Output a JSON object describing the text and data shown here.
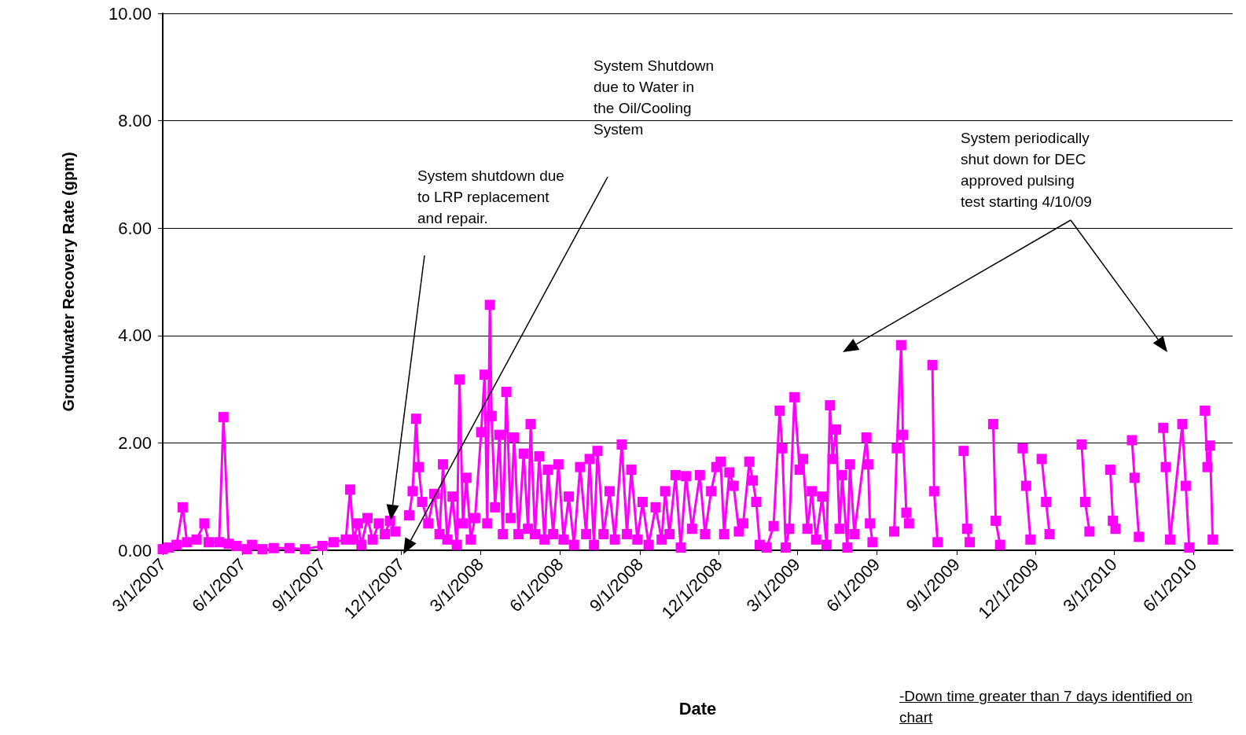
{
  "chart_data": {
    "type": "line",
    "xlabel": "Date",
    "ylabel": "Groundwater Recovery Rate (gpm)",
    "annotations": [
      "System shutdown due\nto LRP replacement\nand repair.",
      "System Shutdown\ndue to Water in\nthe Oil/Cooling\nSystem",
      "System periodically\nshut down for DEC\napproved pulsing\ntest starting 4/10/09",
      "-Down time greater than 7 days identified on\nchart"
    ],
    "xlim": [
      "2007-03-01",
      "2010-07-16"
    ],
    "xticks": [
      {
        "value": "2007-03-01",
        "label": "3/1/2007"
      },
      {
        "value": "2007-06-01",
        "label": "6/1/2007"
      },
      {
        "value": "2007-09-01",
        "label": "9/1/2007"
      },
      {
        "value": "2007-12-01",
        "label": "12/1/2007"
      },
      {
        "value": "2008-03-01",
        "label": "3/1/2008"
      },
      {
        "value": "2008-06-01",
        "label": "6/1/2008"
      },
      {
        "value": "2008-09-01",
        "label": "9/1/2008"
      },
      {
        "value": "2008-12-01",
        "label": "12/1/2008"
      },
      {
        "value": "2009-03-01",
        "label": "3/1/2009"
      },
      {
        "value": "2009-06-01",
        "label": "6/1/2009"
      },
      {
        "value": "2009-09-01",
        "label": "9/1/2009"
      },
      {
        "value": "2009-12-01",
        "label": "12/1/2009"
      },
      {
        "value": "2010-03-01",
        "label": "3/1/2010"
      },
      {
        "value": "2010-06-01",
        "label": "6/1/2010"
      }
    ],
    "ylim": [
      0,
      10
    ],
    "yticks": [
      {
        "value": 0,
        "label": "0.00"
      },
      {
        "value": 2,
        "label": "2.00"
      },
      {
        "value": 4,
        "label": "4.00"
      },
      {
        "value": 6,
        "label": "6.00"
      },
      {
        "value": 8,
        "label": "8.00"
      },
      {
        "value": 10,
        "label": "10.00"
      }
    ],
    "grid": "y",
    "marker": "square",
    "line_style": "solid",
    "series": [
      {
        "color": "#ff00ff",
        "x": [
          "2007-03-01",
          "2007-03-08",
          "2007-03-17",
          "2007-03-24",
          "2007-03-29",
          "2007-04-09",
          "2007-04-18",
          "2007-04-23",
          "2007-05-05",
          "2007-05-10",
          "2007-05-16",
          "2007-05-25",
          "2007-06-06",
          "2007-06-12",
          "2007-06-24",
          "2007-07-07",
          "2007-07-25",
          "2007-08-12",
          "2007-09-01",
          "2007-09-14",
          "2007-09-28",
          "2007-10-03",
          "2007-10-07",
          "2007-10-12",
          "2007-10-16",
          "2007-10-23",
          "2007-10-29",
          "2007-11-05",
          "2007-11-12",
          "2007-11-18",
          "2007-11-24",
          "2007-12-01",
          "2007-12-10",
          "2007-12-14",
          "2007-12-18",
          "2007-12-21",
          "2007-12-25",
          "2008-01-01",
          "2008-01-08",
          "2008-01-14",
          "2008-01-18",
          "2008-01-23",
          "2008-01-29",
          "2008-02-03",
          "2008-02-06",
          "2008-02-10",
          "2008-02-14",
          "2008-02-19",
          "2008-02-24",
          "2008-03-02",
          "2008-03-06",
          "2008-03-09",
          "2008-03-12",
          "2008-03-14",
          "2008-03-18",
          "2008-03-23",
          "2008-03-27",
          "2008-03-31",
          "2008-04-05",
          "2008-04-09",
          "2008-04-14",
          "2008-04-20",
          "2008-04-25",
          "2008-04-28",
          "2008-05-03",
          "2008-05-08",
          "2008-05-14",
          "2008-05-18",
          "2008-05-24",
          "2008-05-30",
          "2008-06-05",
          "2008-06-11",
          "2008-06-17",
          "2008-06-24",
          "2008-07-01",
          "2008-07-05",
          "2008-07-10",
          "2008-07-14",
          "2008-07-21",
          "2008-07-28",
          "2008-08-03",
          "2008-08-11",
          "2008-08-17",
          "2008-08-22",
          "2008-08-29",
          "2008-09-04",
          "2008-09-11",
          "2008-09-19",
          "2008-09-26",
          "2008-09-30",
          "2008-10-05",
          "2008-10-12",
          "2008-10-18",
          "2008-10-24",
          "2008-10-31",
          "2008-11-09",
          "2008-11-15",
          "2008-11-22",
          "2008-11-28",
          "2008-12-03",
          "2008-12-07",
          "2008-12-13",
          "2008-12-18",
          "2008-12-24",
          "2008-12-29",
          "2009-01-05",
          "2009-01-09",
          "2009-01-13",
          "2009-01-17",
          "2009-01-25",
          "2009-02-02",
          "2009-02-09",
          "2009-02-12",
          "2009-02-16",
          "2009-02-20",
          "2009-02-26",
          "2009-03-04",
          "2009-03-08",
          "2009-03-13",
          "2009-03-18",
          "2009-03-23",
          "2009-03-30",
          "2009-04-04",
          "2009-04-08",
          "2009-04-11",
          "2009-04-15",
          "2009-04-19",
          "2009-04-22",
          "2009-04-28",
          "2009-05-01",
          "2009-05-06",
          "2009-05-20",
          "2009-05-22",
          "2009-05-24",
          "2009-05-27",
          "2009-06-10",
          "2009-06-21",
          "2009-06-24",
          "2009-06-29",
          "2009-07-01",
          "2009-07-05",
          "2009-07-08",
          "2009-07-20",
          "2009-08-04",
          "2009-08-06",
          "2009-08-10",
          "2009-08-25",
          "2009-09-09",
          "2009-09-13",
          "2009-09-16",
          "2009-09-30",
          "2009-10-13",
          "2009-10-16",
          "2009-10-21",
          "2009-11-02",
          "2009-11-16",
          "2009-11-20",
          "2009-11-25",
          "2009-12-01",
          "2009-12-08",
          "2009-12-13",
          "2009-12-17",
          "2010-01-05",
          "2010-01-23",
          "2010-01-27",
          "2010-02-01",
          "2010-02-12",
          "2010-02-25",
          "2010-02-28",
          "2010-03-03",
          "2010-03-12",
          "2010-03-22",
          "2010-03-25",
          "2010-03-30",
          "2010-04-12",
          "2010-04-27",
          "2010-04-30",
          "2010-05-05",
          "2010-05-19",
          "2010-05-23",
          "2010-05-27",
          "2010-06-05",
          "2010-06-14",
          "2010-06-17",
          "2010-06-20",
          "2010-06-23"
        ],
        "values": [
          0.02,
          0.05,
          0.1,
          0.8,
          0.15,
          0.2,
          0.5,
          0.15,
          0.15,
          2.48,
          0.12,
          0.08,
          0.02,
          0.1,
          0.02,
          0.04,
          0.04,
          0.02,
          0.08,
          0.15,
          0.2,
          1.13,
          0.2,
          0.5,
          0.1,
          0.6,
          0.2,
          0.5,
          0.3,
          0.55,
          0.35,
          null,
          0.65,
          1.1,
          2.45,
          1.55,
          0.9,
          0.5,
          1.05,
          0.3,
          1.6,
          0.2,
          1.0,
          0.1,
          3.18,
          0.5,
          1.35,
          0.2,
          0.6,
          2.2,
          3.27,
          0.5,
          4.57,
          2.5,
          0.8,
          2.15,
          0.3,
          2.95,
          0.6,
          2.1,
          0.3,
          1.8,
          0.4,
          2.35,
          0.3,
          1.75,
          0.2,
          1.5,
          0.3,
          1.6,
          0.2,
          1.0,
          0.1,
          1.55,
          0.3,
          1.7,
          0.1,
          1.85,
          0.3,
          1.1,
          0.2,
          1.97,
          0.3,
          1.5,
          0.2,
          0.9,
          0.1,
          0.8,
          0.2,
          1.1,
          0.3,
          1.4,
          0.05,
          1.38,
          0.4,
          1.4,
          0.3,
          1.1,
          1.55,
          1.65,
          0.3,
          1.45,
          1.2,
          0.35,
          0.5,
          1.65,
          1.3,
          0.9,
          0.1,
          0.05,
          0.45,
          2.6,
          1.9,
          0.05,
          0.4,
          2.85,
          1.5,
          1.7,
          0.4,
          1.1,
          0.2,
          1.0,
          0.1,
          2.7,
          1.7,
          2.25,
          0.4,
          1.4,
          0.05,
          1.6,
          0.3,
          2.1,
          1.6,
          0.5,
          0.15,
          null,
          0.35,
          1.9,
          3.82,
          2.15,
          0.7,
          0.5,
          null,
          3.45,
          1.1,
          0.15,
          null,
          1.85,
          0.4,
          0.15,
          null,
          2.35,
          0.55,
          0.1,
          null,
          1.9,
          1.2,
          0.2,
          null,
          1.7,
          0.9,
          0.3,
          null,
          1.97,
          0.9,
          0.35,
          null,
          1.5,
          0.55,
          0.4,
          null,
          2.05,
          1.35,
          0.25,
          null,
          2.28,
          1.55,
          0.2,
          2.35,
          1.2,
          0.05,
          null,
          2.6,
          1.55,
          1.95,
          0.2
        ]
      }
    ]
  }
}
